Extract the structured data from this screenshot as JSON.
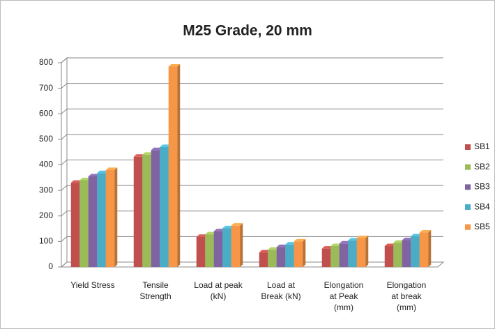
{
  "chart_data": {
    "type": "bar3d",
    "title": "M25 Grade, 20 mm",
    "categories": [
      "Yield Stress",
      "Tensile\nStrength",
      "Load at peak\n(kN)",
      "Load at\nBreak (kN)",
      "Elongation\nat Peak\n(mm)",
      "Elongation\nat break\n(mm)"
    ],
    "series": [
      {
        "name": "SB1",
        "color": "#c0504d",
        "values": [
          330,
          432,
          118,
          57,
          72,
          82
        ]
      },
      {
        "name": "SB2",
        "color": "#9bbb59",
        "values": [
          340,
          440,
          128,
          68,
          82,
          95
        ]
      },
      {
        "name": "SB3",
        "color": "#8064a2",
        "values": [
          355,
          458,
          140,
          78,
          92,
          105
        ]
      },
      {
        "name": "SB4",
        "color": "#4bacc6",
        "values": [
          368,
          470,
          152,
          88,
          104,
          120
        ]
      },
      {
        "name": "SB5",
        "color": "#f79646",
        "values": [
          380,
          785,
          162,
          100,
          113,
          135
        ]
      }
    ],
    "ylim": [
      0,
      800
    ],
    "yticks": [
      0,
      100,
      200,
      300,
      400,
      500,
      600,
      700,
      800
    ],
    "grid": true,
    "legend": "right"
  }
}
